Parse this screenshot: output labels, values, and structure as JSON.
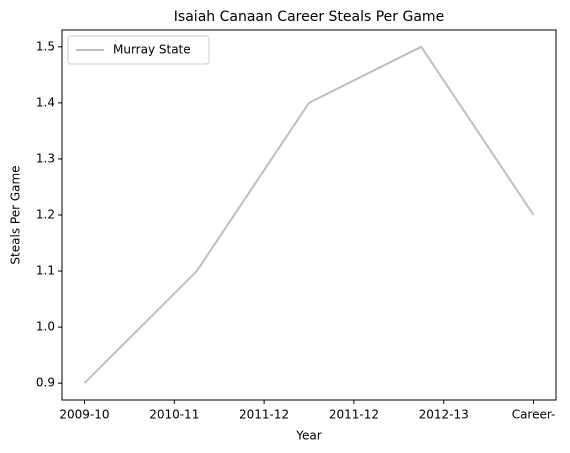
{
  "chart_data": {
    "type": "line",
    "title": "Isaiah Canaan Career Steals Per Game",
    "xlabel": "Year",
    "ylabel": "Steals Per Game",
    "x": [
      0,
      1,
      2,
      3,
      4
    ],
    "series": [
      {
        "name": "Murray State",
        "color": "#bfbfbf",
        "values": [
          0.9,
          1.1,
          1.4,
          1.5,
          1.2
        ]
      }
    ],
    "xlim": [
      -0.2,
      4.2
    ],
    "xticks": [
      {
        "value": 0,
        "label": "2009-10"
      },
      {
        "value": 0.8,
        "label": "2010-11"
      },
      {
        "value": 1.6,
        "label": "2011-12"
      },
      {
        "value": 2.4,
        "label": "2011-12"
      },
      {
        "value": 3.2,
        "label": "2012-13"
      },
      {
        "value": 4,
        "label": "Career-"
      }
    ],
    "ylim": [
      0.87,
      1.53
    ],
    "yticks": [
      0.9,
      {
        "value": 1,
        "label": "1.0"
      },
      1.1,
      1.2,
      1.3,
      1.4,
      1.5
    ],
    "legend": "upper left",
    "grid": false
  }
}
